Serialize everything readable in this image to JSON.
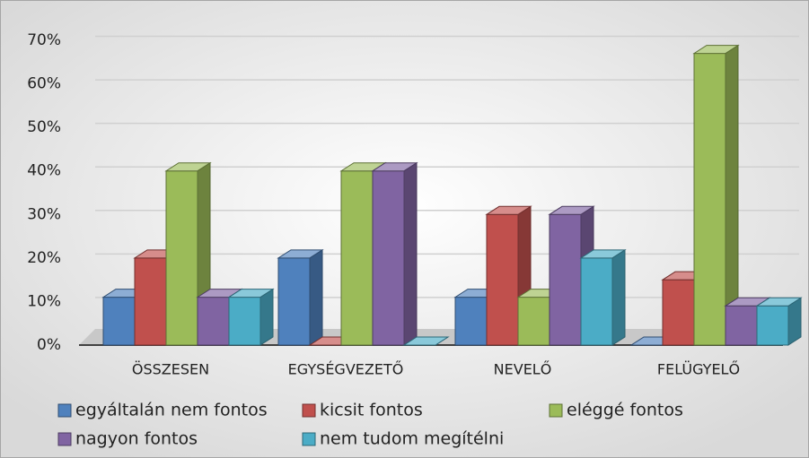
{
  "chart_data": {
    "type": "bar3d",
    "categories": [
      "ÖSSZESEN",
      "EGYSÉGVEZETŐ",
      "NEVELŐ",
      "FELÜGYELŐ"
    ],
    "series": [
      {
        "name": "egyáltalán nem fontos",
        "color": "#4f81bd",
        "values": [
          11,
          20,
          11,
          0
        ]
      },
      {
        "name": "kicsit fontos",
        "color": "#c0504d",
        "values": [
          20,
          0,
          30,
          15
        ]
      },
      {
        "name": "eléggé fontos",
        "color": "#9bbb59",
        "values": [
          40,
          40,
          11,
          67
        ]
      },
      {
        "name": "nagyon fontos",
        "color": "#8064a2",
        "values": [
          11,
          40,
          30,
          9
        ]
      },
      {
        "name": "nem tudom megítélni",
        "color": "#4bacc6",
        "values": [
          11,
          0,
          20,
          9
        ]
      }
    ],
    "ylim": [
      0,
      70
    ],
    "yticks": [
      {
        "value": 0,
        "label": "0%"
      },
      {
        "value": 10,
        "label": "10%"
      },
      {
        "value": 20,
        "label": "20%"
      },
      {
        "value": 30,
        "label": "30%"
      },
      {
        "value": 40,
        "label": "40%"
      },
      {
        "value": 50,
        "label": "50%"
      },
      {
        "value": 60,
        "label": "60%"
      },
      {
        "value": 70,
        "label": "70%"
      }
    ],
    "grid": true
  }
}
